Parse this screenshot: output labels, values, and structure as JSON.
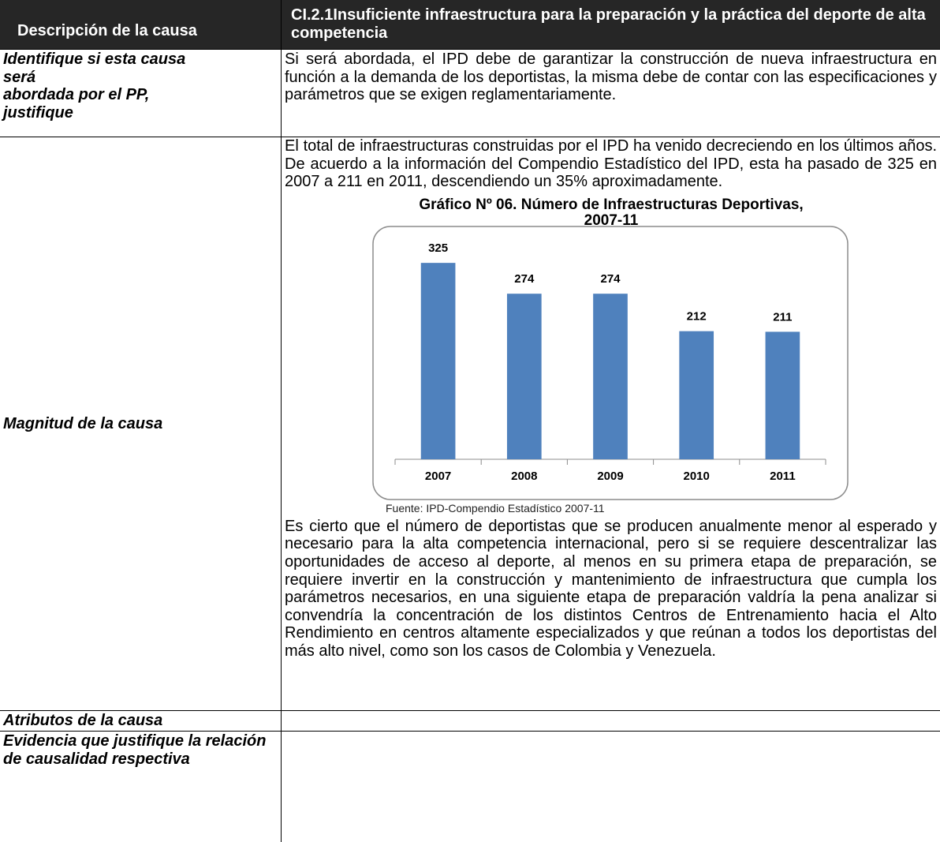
{
  "table": {
    "header": {
      "left": "Descripción de la causa",
      "right": "CI.2.1Insuficiente infraestructura para la preparación y la práctica del deporte de alta competencia"
    },
    "rows": [
      {
        "label": "Identifique si esta causa\nserá\nabordada por el PP,\njustifique",
        "content": "Si será abordada, el IPD debe de garantizar la construcción de nueva infraestructura en función a la demanda de los deportistas, la misma debe de contar con las especificaciones y parámetros que se exigen reglamentariamente."
      },
      {
        "label": "Magnitud de la causa",
        "paragraph_1": "El total de infraestructuras construidas por el IPD ha venido decreciendo en los últimos años. De acuerdo a la información del Compendio Estadístico  del IPD, esta ha pasado de 325 en 2007 a 211 en 2011, descendiendo un 35% aproximadamente.",
        "source": "Fuente: IPD-Compendio Estadístico 2007-11",
        "paragraph_2": "Es cierto que el número de deportistas que se producen anualmente menor al esperado y necesario para la alta competencia internacional, pero si se requiere descentralizar las oportunidades de acceso al deporte, al menos en su primera etapa de preparación, se requiere invertir en la construcción y mantenimiento de infraestructura que cumpla los parámetros necesarios, en una siguiente etapa de preparación valdría la pena analizar si convendría la concentración de los distintos Centros de Entrenamiento hacia el Alto Rendimiento en centros altamente especializados y que reúnan a todos los deportistas del más alto nivel, como son los casos de Colombia y Venezuela."
      },
      {
        "label": "Atributos de la causa"
      },
      {
        "label": "Evidencia que justifique la relación de causalidad respectiva"
      }
    ]
  },
  "chart_data": {
    "type": "bar",
    "title": "Gráfico Nº 06. Número de Infraestructuras Deportivas,\n2007-11",
    "categories": [
      "2007",
      "2008",
      "2009",
      "2010",
      "2011"
    ],
    "values": [
      325,
      274,
      274,
      212,
      211
    ],
    "color": "#4f81bd",
    "ylim": [
      0,
      350
    ]
  }
}
